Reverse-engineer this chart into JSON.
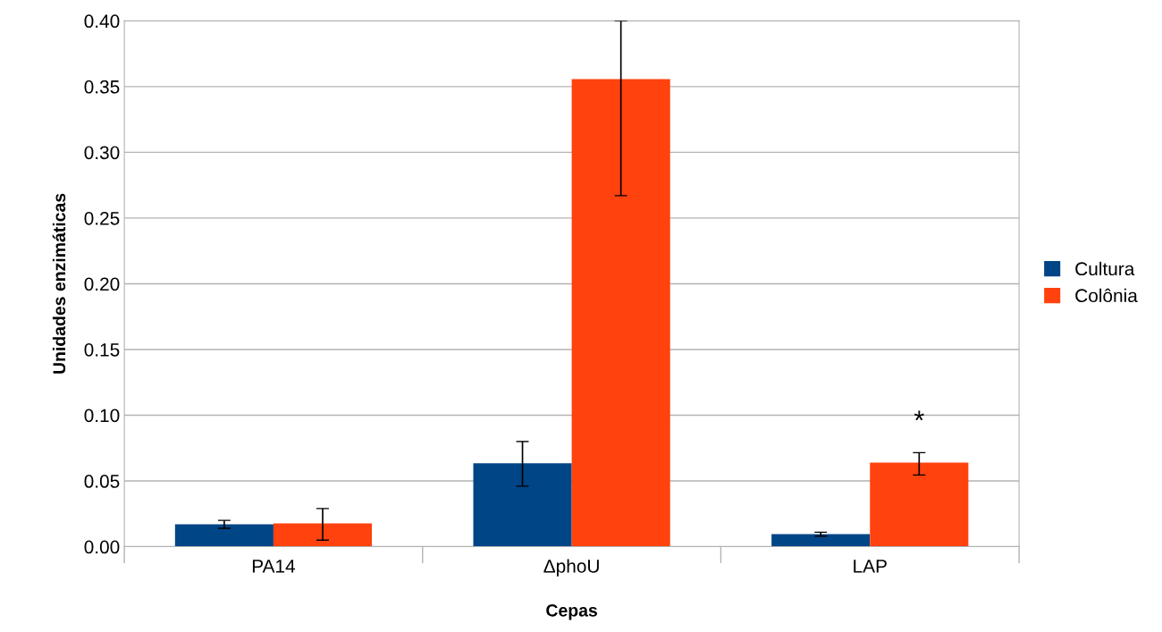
{
  "chart_data": {
    "type": "bar",
    "xlabel": "Cepas",
    "ylabel": "Unidades enzimáticas",
    "categories": [
      "PA14",
      "ΔphoU",
      "LAP"
    ],
    "series": [
      {
        "name": "Cultura",
        "color": "#004586",
        "values": [
          0.017,
          0.0634,
          0.0095
        ],
        "errors": [
          0.003,
          [
            0.046,
            0.08
          ],
          [
            0.008,
            0.011
          ]
        ]
      },
      {
        "name": "Colônia",
        "color": "#ff420e",
        "values": [
          0.0177,
          0.3557,
          0.064
        ],
        "errors": [
          [
            0.005,
            0.029
          ],
          [
            0.267,
            0.4
          ],
          [
            0.0545,
            0.0715
          ]
        ]
      }
    ],
    "ylim": [
      0,
      0.4
    ],
    "yticks": [
      {
        "value": 0,
        "label": "0.00"
      },
      {
        "value": 0.05,
        "label": "0.05"
      },
      {
        "value": 0.1,
        "label": "0.10"
      },
      {
        "value": 0.15,
        "label": "0.15"
      },
      {
        "value": 0.2,
        "label": "0.20"
      },
      {
        "value": 0.25,
        "label": "0.25"
      },
      {
        "value": 0.3,
        "label": "0.30"
      },
      {
        "value": 0.35,
        "label": "0.35"
      },
      {
        "value": 0.4,
        "label": "0.40"
      }
    ],
    "grid": "y",
    "legend": "right",
    "annotations": [
      "*"
    ]
  }
}
